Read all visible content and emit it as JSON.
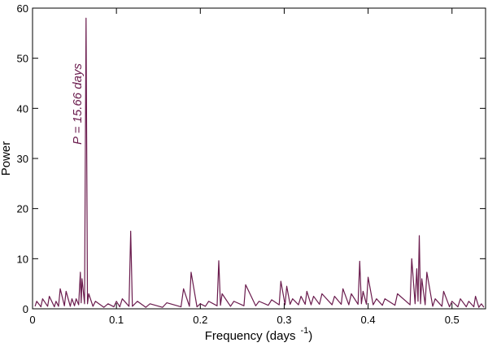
{
  "chart_data": {
    "type": "line",
    "xlabel": {
      "text": "Frequency (days",
      "superscript": "-1",
      "close": ")"
    },
    "ylabel": "Power",
    "annotation": "P = 15.66 days",
    "xlim": [
      0,
      0.54
    ],
    "ylim": [
      0,
      60
    ],
    "xticks": [
      0,
      0.1,
      0.2,
      0.3,
      0.4,
      0.5
    ],
    "yticks": [
      0,
      10,
      20,
      30,
      40,
      50,
      60
    ],
    "series": [
      {
        "color": "#6a1b4d",
        "x": [
          0.003,
          0.005,
          0.01,
          0.012,
          0.018,
          0.02,
          0.026,
          0.028,
          0.031,
          0.033,
          0.038,
          0.04,
          0.045,
          0.047,
          0.05,
          0.052,
          0.055,
          0.057,
          0.058,
          0.059,
          0.062,
          0.0638,
          0.0655,
          0.067,
          0.072,
          0.075,
          0.085,
          0.09,
          0.097,
          0.1,
          0.104,
          0.107,
          0.115,
          0.117,
          0.119,
          0.125,
          0.135,
          0.14,
          0.155,
          0.16,
          0.177,
          0.18,
          0.187,
          0.189,
          0.196,
          0.2,
          0.206,
          0.21,
          0.22,
          0.222,
          0.224,
          0.226,
          0.236,
          0.24,
          0.252,
          0.254,
          0.266,
          0.27,
          0.281,
          0.285,
          0.294,
          0.296,
          0.301,
          0.303,
          0.307,
          0.31,
          0.317,
          0.32,
          0.325,
          0.327,
          0.332,
          0.335,
          0.342,
          0.345,
          0.357,
          0.36,
          0.368,
          0.37,
          0.377,
          0.38,
          0.388,
          0.39,
          0.392,
          0.394,
          0.398,
          0.4,
          0.406,
          0.41,
          0.417,
          0.42,
          0.432,
          0.435,
          0.45,
          0.452,
          0.456,
          0.458,
          0.4595,
          0.461,
          0.4625,
          0.464,
          0.468,
          0.47,
          0.477,
          0.48,
          0.488,
          0.49,
          0.497,
          0.5,
          0.507,
          0.51,
          0.517,
          0.52,
          0.526,
          0.528,
          0.532,
          0.535,
          0.538
        ],
        "values": [
          0.5,
          1.5,
          0.4,
          2,
          0.5,
          2.5,
          0.4,
          1.5,
          0.5,
          4,
          0.6,
          3.5,
          0.5,
          2,
          0.6,
          2,
          0.8,
          7.3,
          1.2,
          6,
          1,
          58,
          1,
          3,
          0.5,
          1.5,
          0.3,
          1,
          0.4,
          1.5,
          0.4,
          2,
          0.5,
          15.5,
          0.5,
          1.5,
          0.3,
          1,
          0.3,
          1.2,
          0.4,
          4,
          0.5,
          7.3,
          0.4,
          1,
          0.5,
          1.5,
          0.6,
          9.6,
          0.7,
          3,
          0.5,
          1.5,
          0.6,
          4.8,
          0.6,
          1.5,
          0.7,
          1.8,
          0.8,
          5.5,
          0.8,
          4.5,
          0.9,
          2,
          0.8,
          2.5,
          0.9,
          3.5,
          0.8,
          2.5,
          0.9,
          3,
          0.8,
          2.5,
          0.9,
          4,
          0.8,
          3,
          0.9,
          9.5,
          1,
          3.5,
          0.9,
          6.3,
          0.8,
          2,
          0.7,
          2,
          0.7,
          3,
          0.8,
          10,
          1,
          8,
          1.5,
          14.6,
          1,
          6,
          0.8,
          7.3,
          0.5,
          2,
          0.5,
          3.5,
          0.4,
          1.5,
          0.4,
          2,
          0.4,
          1.5,
          0.4,
          2.5,
          0.3,
          1,
          0.3
        ]
      }
    ]
  }
}
